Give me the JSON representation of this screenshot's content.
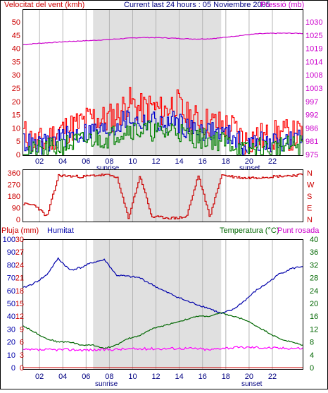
{
  "colors": {
    "wind_gust": "#ff0000",
    "wind_avg": "#0000cc",
    "wind_min": "#008000",
    "pressure": "#cc00cc",
    "direction": "#cc0000",
    "humidity": "#0000aa",
    "temperature": "#006600",
    "dewpoint": "#ff00ff",
    "grid": "#b4b4b4",
    "day_band": "#e0e0e0"
  },
  "panel1": {
    "title_left": "Velocitat del vent (kmh)",
    "title_center": "Current last 24 hours : 05 Noviembre 2005",
    "title_right": "Pressió (mb)",
    "left_ticks": [
      "0",
      "5",
      "10",
      "15",
      "20",
      "25",
      "30",
      "35",
      "40",
      "45",
      "50"
    ],
    "right_ticks": [
      "975",
      "981",
      "986",
      "992",
      "997",
      "1003",
      "1008",
      "1014",
      "1019",
      "1025",
      "1030"
    ],
    "x_ticks": [
      "02",
      "04",
      "06",
      "08",
      "10",
      "12",
      "14",
      "16",
      "18",
      "20",
      "22"
    ],
    "sunrise": "sunrise",
    "sunset": "sunset"
  },
  "panel2": {
    "left_ticks": [
      "0",
      "90",
      "180",
      "270",
      "360"
    ],
    "right_ticks": [
      "N",
      "E",
      "S",
      "W",
      "N"
    ]
  },
  "panel3": {
    "title_left": "Pluja (mm)",
    "title_humidity": "Humitat",
    "title_right": "Temperatura (°C)",
    "title_right2": "Punt rosada",
    "rain_ticks": [
      "0",
      "3",
      "6",
      "9",
      "12",
      "15",
      "18",
      "21",
      "24",
      "27",
      "30"
    ],
    "hum_ticks": [
      "0",
      "10",
      "20",
      "30",
      "40",
      "50",
      "60",
      "70",
      "80",
      "90",
      "100"
    ],
    "temp_ticks": [
      "0",
      "4",
      "8",
      "12",
      "16",
      "20",
      "24",
      "28",
      "32",
      "36",
      "40"
    ],
    "x_ticks": [
      "02",
      "04",
      "06",
      "08",
      "10",
      "12",
      "14",
      "16",
      "18",
      "20",
      "22"
    ],
    "sunrise": "sunrise",
    "sunset": "sunset"
  },
  "chart_data": [
    {
      "type": "line",
      "title": "Current last 24 hours : 05 Noviembre 2005",
      "ylabel": "Velocitat del vent (kmh)",
      "y2label": "Pressió (mb)",
      "ylim": [
        0,
        50
      ],
      "y2lim": [
        975,
        1030
      ],
      "x": [
        0,
        1,
        2,
        3,
        4,
        5,
        6,
        7,
        8,
        9,
        10,
        11,
        12,
        13,
        14,
        15,
        16,
        17,
        18,
        19,
        20,
        21,
        22,
        23,
        24
      ],
      "series": [
        {
          "name": "gust",
          "axis": "left",
          "values": [
            8,
            4,
            5,
            9,
            10,
            12,
            14,
            13,
            15,
            20,
            17,
            18,
            16,
            20,
            14,
            13,
            12,
            11,
            10,
            5,
            7,
            6,
            8,
            7,
            8
          ]
        },
        {
          "name": "avg",
          "axis": "left",
          "values": [
            5,
            3,
            4,
            6,
            7,
            8,
            9,
            9,
            11,
            14,
            12,
            13,
            11,
            13,
            10,
            9,
            9,
            8,
            7,
            3,
            5,
            4,
            5,
            5,
            6
          ]
        },
        {
          "name": "min",
          "axis": "left",
          "values": [
            2,
            1,
            2,
            3,
            4,
            5,
            6,
            6,
            8,
            10,
            9,
            9,
            8,
            10,
            7,
            6,
            6,
            5,
            4,
            1,
            3,
            2,
            3,
            3,
            4
          ]
        },
        {
          "name": "pressure",
          "axis": "right",
          "values": [
            1020.5,
            1021,
            1021.3,
            1021.6,
            1021.9,
            1022.1,
            1022.3,
            1022.6,
            1022.9,
            1023.2,
            1023.5,
            1023.5,
            1023.4,
            1023.2,
            1023.0,
            1022.9,
            1023.0,
            1023.4,
            1024.0,
            1024.5,
            1025.0,
            1025.2,
            1025.3,
            1025.3,
            1025.2
          ]
        }
      ]
    },
    {
      "type": "line",
      "ylabel": "",
      "ylim": [
        0,
        360
      ],
      "x": [
        0,
        1,
        2,
        3,
        4,
        5,
        6,
        7,
        8,
        9,
        10,
        11,
        12,
        13,
        14,
        15,
        16,
        17,
        18,
        19,
        20,
        21,
        22,
        23,
        24
      ],
      "series": [
        {
          "name": "direction",
          "values": [
            120,
            110,
            20,
            340,
            335,
            330,
            340,
            345,
            330,
            10,
            340,
            20,
            15,
            10,
            20,
            340,
            20,
            345,
            330,
            320,
            325,
            330,
            335,
            340,
            345
          ]
        }
      ]
    },
    {
      "type": "line",
      "ylabel": "Humitat",
      "y2label": "Temperatura (°C)",
      "ylim": [
        0,
        100
      ],
      "y2lim": [
        0,
        40
      ],
      "x": [
        0,
        1,
        2,
        3,
        4,
        5,
        6,
        7,
        8,
        9,
        10,
        11,
        12,
        13,
        14,
        15,
        16,
        17,
        18,
        19,
        20,
        21,
        22,
        23,
        24
      ],
      "series": [
        {
          "name": "Humitat",
          "axis": "left",
          "values": [
            62,
            66,
            72,
            85,
            76,
            78,
            82,
            84,
            72,
            71,
            70,
            65,
            60,
            56,
            52,
            49,
            46,
            42,
            45,
            52,
            60,
            66,
            73,
            77,
            79
          ]
        },
        {
          "name": "temperature",
          "axis": "right",
          "values": [
            13,
            11,
            9,
            8,
            8,
            7,
            7,
            6,
            7,
            9,
            10,
            12,
            13,
            14,
            15,
            16,
            16,
            17,
            16,
            15,
            13,
            11,
            9,
            8,
            7
          ]
        },
        {
          "name": "Punt rosada",
          "axis": "right",
          "values": [
            5.5,
            5.5,
            5.5,
            5.6,
            5.6,
            5.5,
            5.5,
            5.6,
            5.7,
            5.8,
            5.8,
            5.9,
            5.9,
            6.0,
            6.0,
            5.9,
            5.5,
            6.1,
            6.2,
            6.3,
            6.3,
            6.2,
            6.0,
            6.1,
            6.0
          ]
        }
      ]
    }
  ]
}
